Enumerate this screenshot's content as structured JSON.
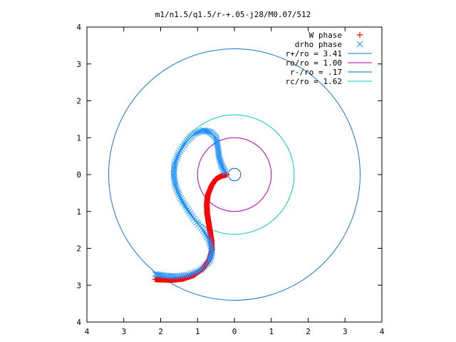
{
  "chart_data": {
    "type": "scatter",
    "title": "m1/n1.5/q1.5/r-+.05-j28/M0.07/512",
    "xlabel": "",
    "ylabel": "",
    "xlim": [
      -4,
      4
    ],
    "ylim": [
      -4,
      4
    ],
    "x_tick_labels": [
      "4",
      "3",
      "2",
      "1",
      "0",
      "1",
      "2",
      "3",
      "4"
    ],
    "y_tick_labels": [
      "4",
      "3",
      "2",
      "1",
      "0",
      "1",
      "2",
      "3",
      "4"
    ],
    "grid": false,
    "legend_position": "top-right",
    "series": [
      {
        "name": "W phase",
        "marker": "+",
        "color": "#ff0000",
        "points": [
          [
            -0.2,
            0.0
          ],
          [
            -0.35,
            -0.04
          ],
          [
            -0.5,
            -0.12
          ],
          [
            -0.62,
            -0.3
          ],
          [
            -0.72,
            -0.55
          ],
          [
            -0.75,
            -0.8
          ],
          [
            -0.74,
            -1.05
          ],
          [
            -0.7,
            -1.3
          ],
          [
            -0.66,
            -1.55
          ],
          [
            -0.62,
            -1.8
          ],
          [
            -0.61,
            -2.05
          ],
          [
            -0.68,
            -2.3
          ],
          [
            -0.85,
            -2.55
          ],
          [
            -1.1,
            -2.73
          ],
          [
            -1.4,
            -2.83
          ],
          [
            -1.7,
            -2.86
          ],
          [
            -2.0,
            -2.85
          ],
          [
            -2.15,
            -2.84
          ]
        ]
      },
      {
        "name": "drho phase",
        "marker": "x",
        "color": "#1e90ff",
        "points": [
          [
            -0.25,
            0.05
          ],
          [
            -0.35,
            0.25
          ],
          [
            -0.42,
            0.5
          ],
          [
            -0.45,
            0.75
          ],
          [
            -0.5,
            1.0
          ],
          [
            -0.65,
            1.15
          ],
          [
            -0.85,
            1.2
          ],
          [
            -1.1,
            1.1
          ],
          [
            -1.3,
            0.9
          ],
          [
            -1.5,
            0.6
          ],
          [
            -1.62,
            0.3
          ],
          [
            -1.65,
            0.0
          ],
          [
            -1.6,
            -0.3
          ],
          [
            -1.48,
            -0.6
          ],
          [
            -1.3,
            -0.9
          ],
          [
            -1.1,
            -1.2
          ],
          [
            -0.85,
            -1.5
          ],
          [
            -0.68,
            -1.8
          ],
          [
            -0.6,
            -2.1
          ],
          [
            -0.68,
            -2.35
          ],
          [
            -0.9,
            -2.58
          ],
          [
            -1.25,
            -2.72
          ],
          [
            -1.6,
            -2.76
          ],
          [
            -1.9,
            -2.74
          ],
          [
            -2.15,
            -2.7
          ]
        ]
      },
      {
        "name": "r+/ro = 3.41",
        "type": "circle",
        "radius": 3.41,
        "color": "#1874cd"
      },
      {
        "name": "ro/ro = 1.00",
        "type": "circle",
        "radius": 1.0,
        "color": "#b000b0"
      },
      {
        "name": "r-/ro = .17",
        "type": "circle",
        "radius": 0.17,
        "color": "#0060c0"
      },
      {
        "name": "rc/ro = 1.62",
        "type": "circle",
        "radius": 1.62,
        "color": "#00c8c8"
      }
    ]
  }
}
